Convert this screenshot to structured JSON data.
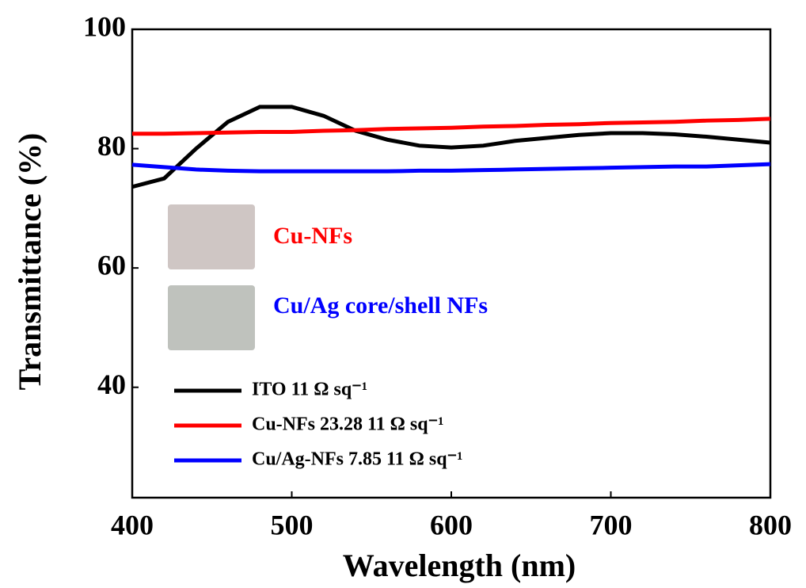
{
  "chart_data": {
    "type": "line",
    "x_label": "Wavelength (nm)",
    "y_label": "Transmittance (%)",
    "x": [
      400,
      420,
      440,
      460,
      480,
      500,
      520,
      540,
      560,
      580,
      600,
      620,
      640,
      660,
      680,
      700,
      720,
      740,
      760,
      780,
      800
    ],
    "series": [
      {
        "name": "ITO  11 Ω sq⁻¹",
        "color": "#000000",
        "values": [
          73.6,
          75,
          80,
          84.5,
          87,
          87,
          85.5,
          83,
          81.5,
          80.5,
          80.2,
          80.5,
          81.3,
          81.8,
          82.3,
          82.6,
          82.6,
          82.4,
          82,
          81.5,
          81
        ]
      },
      {
        "name": "Cu-NFs 23.28  11 Ω sq⁻¹",
        "color": "#ff0000",
        "values": [
          82.5,
          82.5,
          82.6,
          82.7,
          82.8,
          82.8,
          83,
          83.1,
          83.3,
          83.4,
          83.5,
          83.7,
          83.8,
          84,
          84.1,
          84.3,
          84.4,
          84.5,
          84.7,
          84.8,
          85
        ]
      },
      {
        "name": "Cu/Ag-NFs 7.85  11 Ω sq⁻¹",
        "color": "#0000ff",
        "values": [
          77.3,
          76.9,
          76.5,
          76.3,
          76.2,
          76.2,
          76.2,
          76.2,
          76.2,
          76.3,
          76.3,
          76.4,
          76.5,
          76.6,
          76.7,
          76.8,
          76.9,
          77,
          77,
          77.2,
          77.4
        ]
      }
    ],
    "annotations": [
      {
        "text": "Cu-NFs",
        "color": "#ff0000"
      },
      {
        "text": "Cu/Ag core/shell NFs",
        "color": "#0000ff"
      }
    ],
    "xlim": [
      400,
      800
    ],
    "xticks": [
      400,
      500,
      600,
      700,
      800
    ],
    "ylim": [
      21.5,
      100
    ],
    "yticks": [
      40,
      60,
      80,
      100
    ],
    "grid": false,
    "legend": "lower left"
  }
}
